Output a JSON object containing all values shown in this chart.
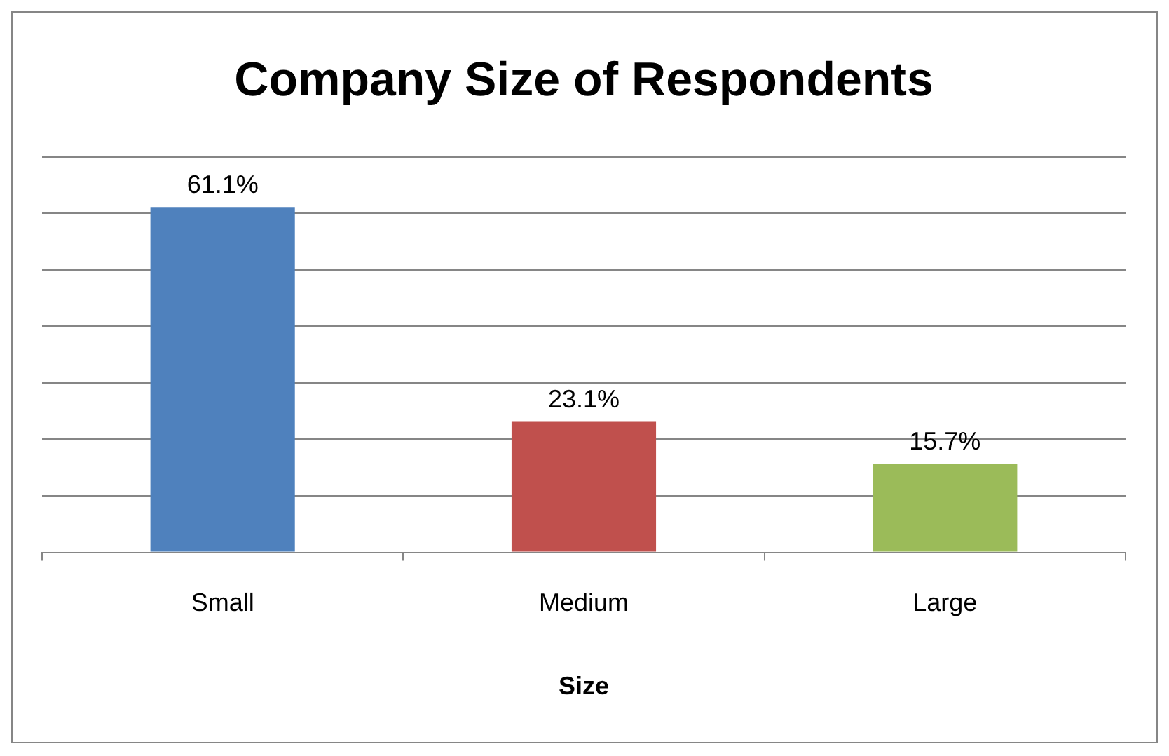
{
  "chart_data": {
    "type": "bar",
    "title": "Company Size of Respondents",
    "xlabel": "Size",
    "categories": [
      "Small",
      "Medium",
      "Large"
    ],
    "values": [
      61.1,
      23.1,
      15.7
    ],
    "colors": [
      "#4f81bd",
      "#c0504d",
      "#9bbb59"
    ],
    "value_labels": [
      "61.1%",
      "23.1%",
      "15.7%"
    ],
    "ylim": [
      0,
      70
    ],
    "yticks": [
      {
        "value": 0,
        "label": null
      },
      {
        "value": 10,
        "label": null
      },
      {
        "value": 20,
        "label": null
      },
      {
        "value": 30,
        "label": null
      },
      {
        "value": 40,
        "label": null
      },
      {
        "value": 50,
        "label": null
      },
      {
        "value": 60,
        "label": null
      },
      {
        "value": 70,
        "label": null
      }
    ],
    "grid": "y",
    "tick_labels": "x",
    "legend": false
  }
}
